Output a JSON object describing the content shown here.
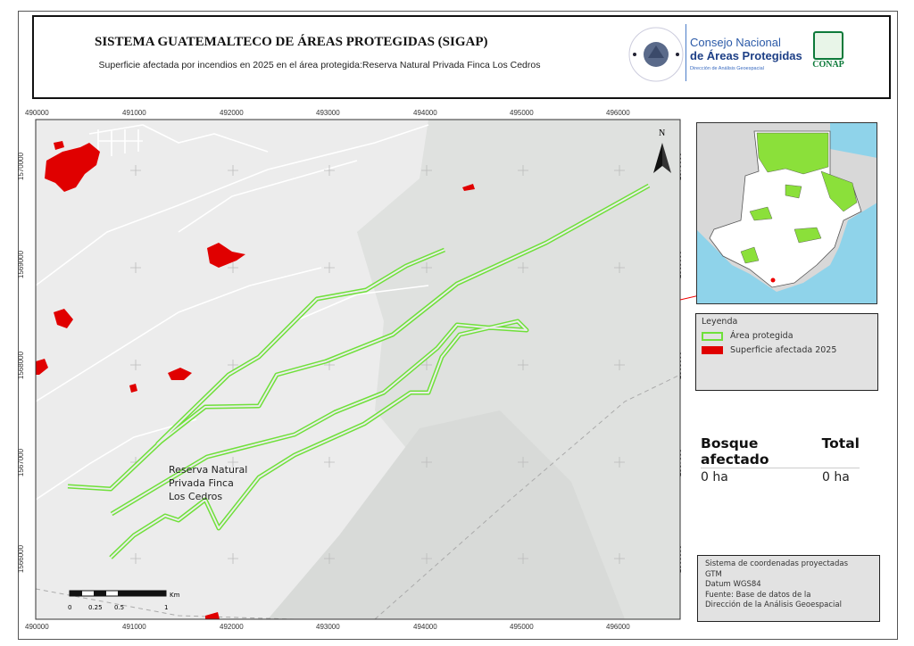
{
  "header": {
    "title": "SISTEMA GUATEMALTECO DE ÁREAS PROTEGIDAS  (SIGAP)",
    "subtitle": "Superficie afectada por incendios en 2025 en el área protegida:Reserva Natural Privada Finca Los Cedros",
    "logo_gov": "GOBIERNO DE LA REPÚBLICA GUATEMALA",
    "logo_consejo_line1": "Consejo Nacional",
    "logo_consejo_line2": "de Áreas Protegidas",
    "logo_consejo_line3": "Dirección de Análisis Geoespacial",
    "logo_conap": "CONAP"
  },
  "map": {
    "x_ticks": [
      "490000",
      "491000",
      "492000",
      "493000",
      "494000",
      "495000",
      "496000"
    ],
    "y_ticks": [
      "1570000",
      "1569000",
      "1568000",
      "1567000",
      "1566000"
    ],
    "area_label": "Reserva Natural Privada Finca Los Cedros",
    "area_label_lines": [
      "Reserva Natural",
      "Privada Finca",
      "Los Cedros"
    ],
    "north_label": "N",
    "scale_labels": [
      "0",
      "0.25",
      "0.5",
      "1"
    ],
    "scale_unit": "Km",
    "colors": {
      "protected_area": "#6fe03a",
      "burned": "#e00000",
      "basemap": "#e9e9e9",
      "terrain": "#dcdedc"
    }
  },
  "inset": {
    "y_ticks": [
      "1570000",
      "1569000",
      "1568000",
      "1567000",
      "1566000"
    ]
  },
  "legend": {
    "title": "Leyenda",
    "items": [
      {
        "label": "Área protegida",
        "color": "#6fe03a",
        "style": "outline"
      },
      {
        "label": "Superficie afectada 2025",
        "color": "#e00000",
        "style": "fill"
      }
    ]
  },
  "stats": {
    "headers": [
      "Bosque afectado",
      "Total"
    ],
    "values": [
      "0 ha",
      "0 ha"
    ]
  },
  "info": {
    "lines": [
      "Sistema de coordenadas proyectadas",
      "GTM",
      "Datum WGS84",
      "Fuente: Base de datos de la",
      "Dirección de la Análisis Geoespacial"
    ]
  }
}
